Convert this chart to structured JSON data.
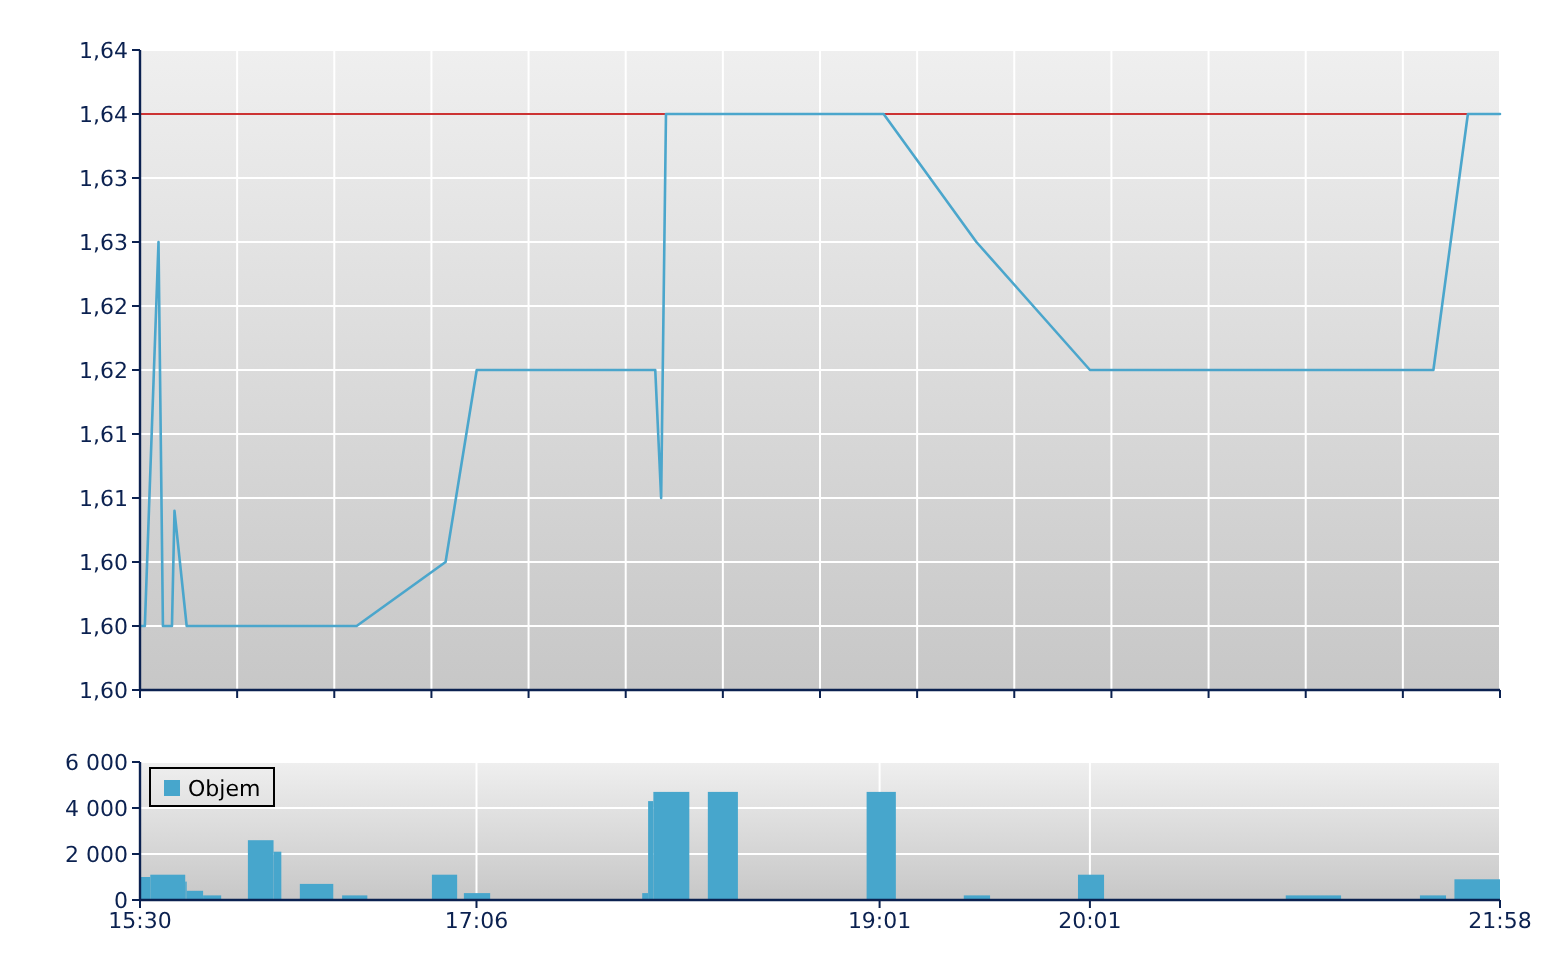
{
  "chart_data": [
    {
      "type": "line",
      "xlim": [
        15.5,
        21.9667
      ],
      "xticks": [
        {
          "value": 15.5,
          "label": null
        },
        {
          "value": 15.9619,
          "label": null
        },
        {
          "value": 16.4238,
          "label": null
        },
        {
          "value": 16.8857,
          "label": null
        },
        {
          "value": 17.3476,
          "label": null
        },
        {
          "value": 17.8095,
          "label": null
        },
        {
          "value": 18.2714,
          "label": null
        },
        {
          "value": 18.7333,
          "label": null
        },
        {
          "value": 19.1952,
          "label": null
        },
        {
          "value": 19.6571,
          "label": null
        },
        {
          "value": 20.119,
          "label": null
        },
        {
          "value": 20.581,
          "label": null
        },
        {
          "value": 21.0429,
          "label": null
        },
        {
          "value": 21.5048,
          "label": null
        },
        {
          "value": 21.9667,
          "label": null
        }
      ],
      "ylim": [
        1.595,
        1.645
      ],
      "yticks": [
        {
          "value": 1.595,
          "label": "1,60"
        },
        {
          "value": 1.6,
          "label": "1,60"
        },
        {
          "value": 1.605,
          "label": "1,60"
        },
        {
          "value": 1.61,
          "label": "1,61"
        },
        {
          "value": 1.615,
          "label": "1,61"
        },
        {
          "value": 1.62,
          "label": "1,62"
        },
        {
          "value": 1.625,
          "label": "1,62"
        },
        {
          "value": 1.63,
          "label": "1,63"
        },
        {
          "value": 1.635,
          "label": "1,63"
        },
        {
          "value": 1.64,
          "label": "1,64"
        },
        {
          "value": 1.645,
          "label": "1,64"
        }
      ],
      "x": [
        15.5,
        15.523,
        15.588,
        15.609,
        15.652,
        15.664,
        15.722,
        16.53,
        16.953,
        17.101,
        17.95,
        17.978,
        18.001,
        19.036,
        19.477,
        20.017,
        21.65,
        21.814,
        21.9667
      ],
      "values": [
        1.6,
        1.6,
        1.63,
        1.6,
        1.6,
        1.609,
        1.6,
        1.6,
        1.605,
        1.62,
        1.62,
        1.61,
        1.64,
        1.64,
        1.63,
        1.62,
        1.62,
        1.64,
        1.64
      ],
      "color": "#4ba6cc",
      "ref_lines": [
        {
          "axis": "y",
          "value": 1.64,
          "color": "#cc3333"
        }
      ],
      "grid": true,
      "tick_labels": "y"
    },
    {
      "type": "histogram",
      "bins": [
        15.5,
        15.549,
        15.715,
        15.722,
        15.8,
        15.886,
        16.013,
        16.135,
        16.172,
        16.26,
        16.419,
        16.461,
        16.581,
        16.888,
        17.008,
        17.04,
        17.165,
        17.888,
        17.916,
        17.941,
        18.112,
        18.2,
        18.343,
        18.955,
        19.094,
        19.417,
        19.542,
        19.96,
        20.084,
        20.948,
        21.211,
        21.586,
        21.71,
        21.75,
        21.9667
      ],
      "series": [
        {
          "name": "Objem",
          "color": "#47a6cc",
          "values": [
            1000,
            1100,
            800,
            400,
            200,
            null,
            2600,
            2100,
            null,
            700,
            null,
            200,
            null,
            1100,
            null,
            300,
            null,
            300,
            4300,
            4700,
            null,
            4700,
            null,
            4700,
            null,
            200,
            null,
            1100,
            null,
            200,
            null,
            200,
            null,
            900
          ]
        }
      ],
      "xlim": [
        15.5,
        21.9667
      ],
      "xticks": [
        {
          "value": 15.5,
          "label": "15:30"
        },
        {
          "value": 17.1,
          "label": "17:06"
        },
        {
          "value": 19.0167,
          "label": "19:01"
        },
        {
          "value": 20.0167,
          "label": "20:01"
        },
        {
          "value": 21.9667,
          "label": "21:58"
        }
      ],
      "ylim": [
        0,
        6000
      ],
      "yticks": [
        0,
        {
          "value": 2000,
          "label": "2 000"
        },
        {
          "value": 4000,
          "label": "4 000"
        },
        {
          "value": 6000,
          "label": "6 000"
        }
      ],
      "grid": true,
      "legend": "top left"
    }
  ]
}
